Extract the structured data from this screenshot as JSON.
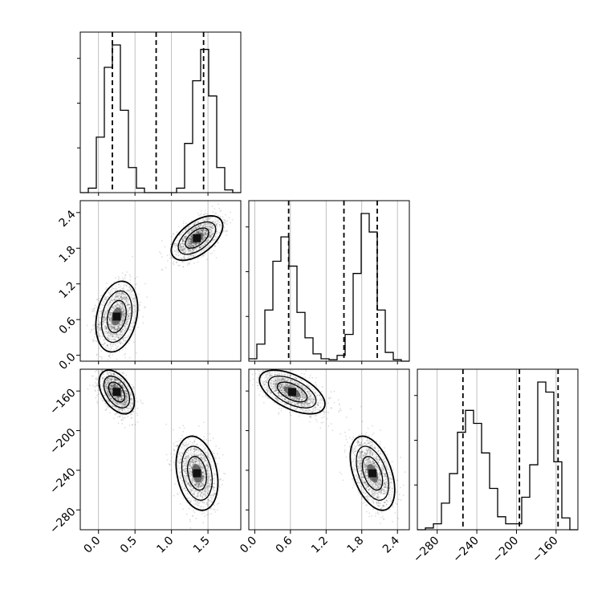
{
  "chart_data": {
    "type": "corner",
    "grid": true,
    "colors": {
      "line": "#000000",
      "grid": "#b0b0b0",
      "points": "#000000",
      "background": "#ffffff"
    },
    "parameters": [
      {
        "id": "p0",
        "range": [
          -0.25,
          1.95
        ],
        "ticks": [
          0.0,
          0.5,
          1.0,
          1.5
        ],
        "tick_labels": [
          "0.0",
          "0.5",
          "1.0",
          "1.5"
        ]
      },
      {
        "id": "p1",
        "range": [
          -0.1,
          2.6
        ],
        "ticks": [
          0.0,
          0.6,
          1.2,
          1.8,
          2.4
        ],
        "tick_labels": [
          "0.0",
          "0.6",
          "1.2",
          "1.8",
          "2.4"
        ]
      },
      {
        "id": "p2",
        "range": [
          -300,
          -138
        ],
        "ticks": [
          -280,
          -240,
          -200,
          -160
        ],
        "tick_labels": [
          "−280",
          "−240",
          "−200",
          "−160"
        ]
      }
    ],
    "histograms": [
      {
        "param": "p0",
        "bin_edges": [
          -0.25,
          -0.14,
          -0.03,
          0.08,
          0.19,
          0.3,
          0.41,
          0.52,
          0.63,
          0.74,
          0.85,
          0.96,
          1.07,
          1.18,
          1.29,
          1.4,
          1.51,
          1.62,
          1.73,
          1.84,
          1.95
        ],
        "counts": [
          0,
          0.05,
          0.62,
          1.4,
          1.65,
          0.92,
          0.28,
          0.05,
          0,
          0,
          0,
          0,
          0.05,
          0.55,
          1.25,
          1.6,
          1.08,
          0.28,
          0.03,
          0
        ],
        "quantiles": [
          0.19,
          0.79,
          1.44
        ]
      },
      {
        "param": "p1",
        "bin_edges": [
          -0.1,
          0.035,
          0.17,
          0.305,
          0.44,
          0.575,
          0.71,
          0.845,
          0.98,
          1.115,
          1.25,
          1.385,
          1.52,
          1.655,
          1.79,
          1.925,
          2.06,
          2.195,
          2.33,
          2.465,
          2.6
        ],
        "counts": [
          0.05,
          0.35,
          1.05,
          2.05,
          2.55,
          1.95,
          1.0,
          0.48,
          0.15,
          0.05,
          0.03,
          0.12,
          0.55,
          1.8,
          3.03,
          2.65,
          1.05,
          0.18,
          0.03,
          0
        ],
        "quantiles": [
          0.57,
          1.5,
          2.06
        ]
      },
      {
        "param": "p2",
        "bin_edges": [
          -300,
          -291.9,
          -283.8,
          -275.7,
          -267.6,
          -259.5,
          -251.4,
          -243.3,
          -235.2,
          -227.1,
          -219,
          -210.9,
          -202.8,
          -194.7,
          -186.6,
          -178.5,
          -170.4,
          -162.3,
          -154.2,
          -146.1,
          -138
        ],
        "counts": [
          0,
          0.03,
          0.1,
          0.45,
          0.95,
          1.65,
          2.02,
          1.8,
          1.3,
          0.7,
          0.22,
          0.1,
          0.1,
          0.55,
          1.1,
          2.5,
          2.33,
          1.15,
          0.2,
          0
        ],
        "quantiles": [
          -254,
          -197,
          -158
        ]
      }
    ],
    "pairs": [
      {
        "x": "p0",
        "y": "p1",
        "modes": [
          {
            "center": [
              0.25,
              0.65
            ],
            "sd": [
              0.13,
              0.27
            ],
            "rho": 0.25,
            "n": 1500
          },
          {
            "center": [
              1.35,
              1.97
            ],
            "sd": [
              0.16,
              0.17
            ],
            "rho": 0.55,
            "n": 1500
          }
        ]
      },
      {
        "x": "p0",
        "y": "p2",
        "modes": [
          {
            "center": [
              0.25,
              -161
            ],
            "sd": [
              0.11,
              10
            ],
            "rho": -0.45,
            "n": 1500
          },
          {
            "center": [
              1.35,
              -243
            ],
            "sd": [
              0.13,
              17
            ],
            "rho": -0.25,
            "n": 1500
          }
        ]
      },
      {
        "x": "p1",
        "y": "p2",
        "modes": [
          {
            "center": [
              0.63,
              -161
            ],
            "sd": [
              0.25,
              10
            ],
            "rho": -0.55,
            "n": 1500
          },
          {
            "center": [
              1.98,
              -243
            ],
            "sd": [
              0.17,
              17
            ],
            "rho": -0.45,
            "n": 1500
          }
        ]
      }
    ]
  }
}
